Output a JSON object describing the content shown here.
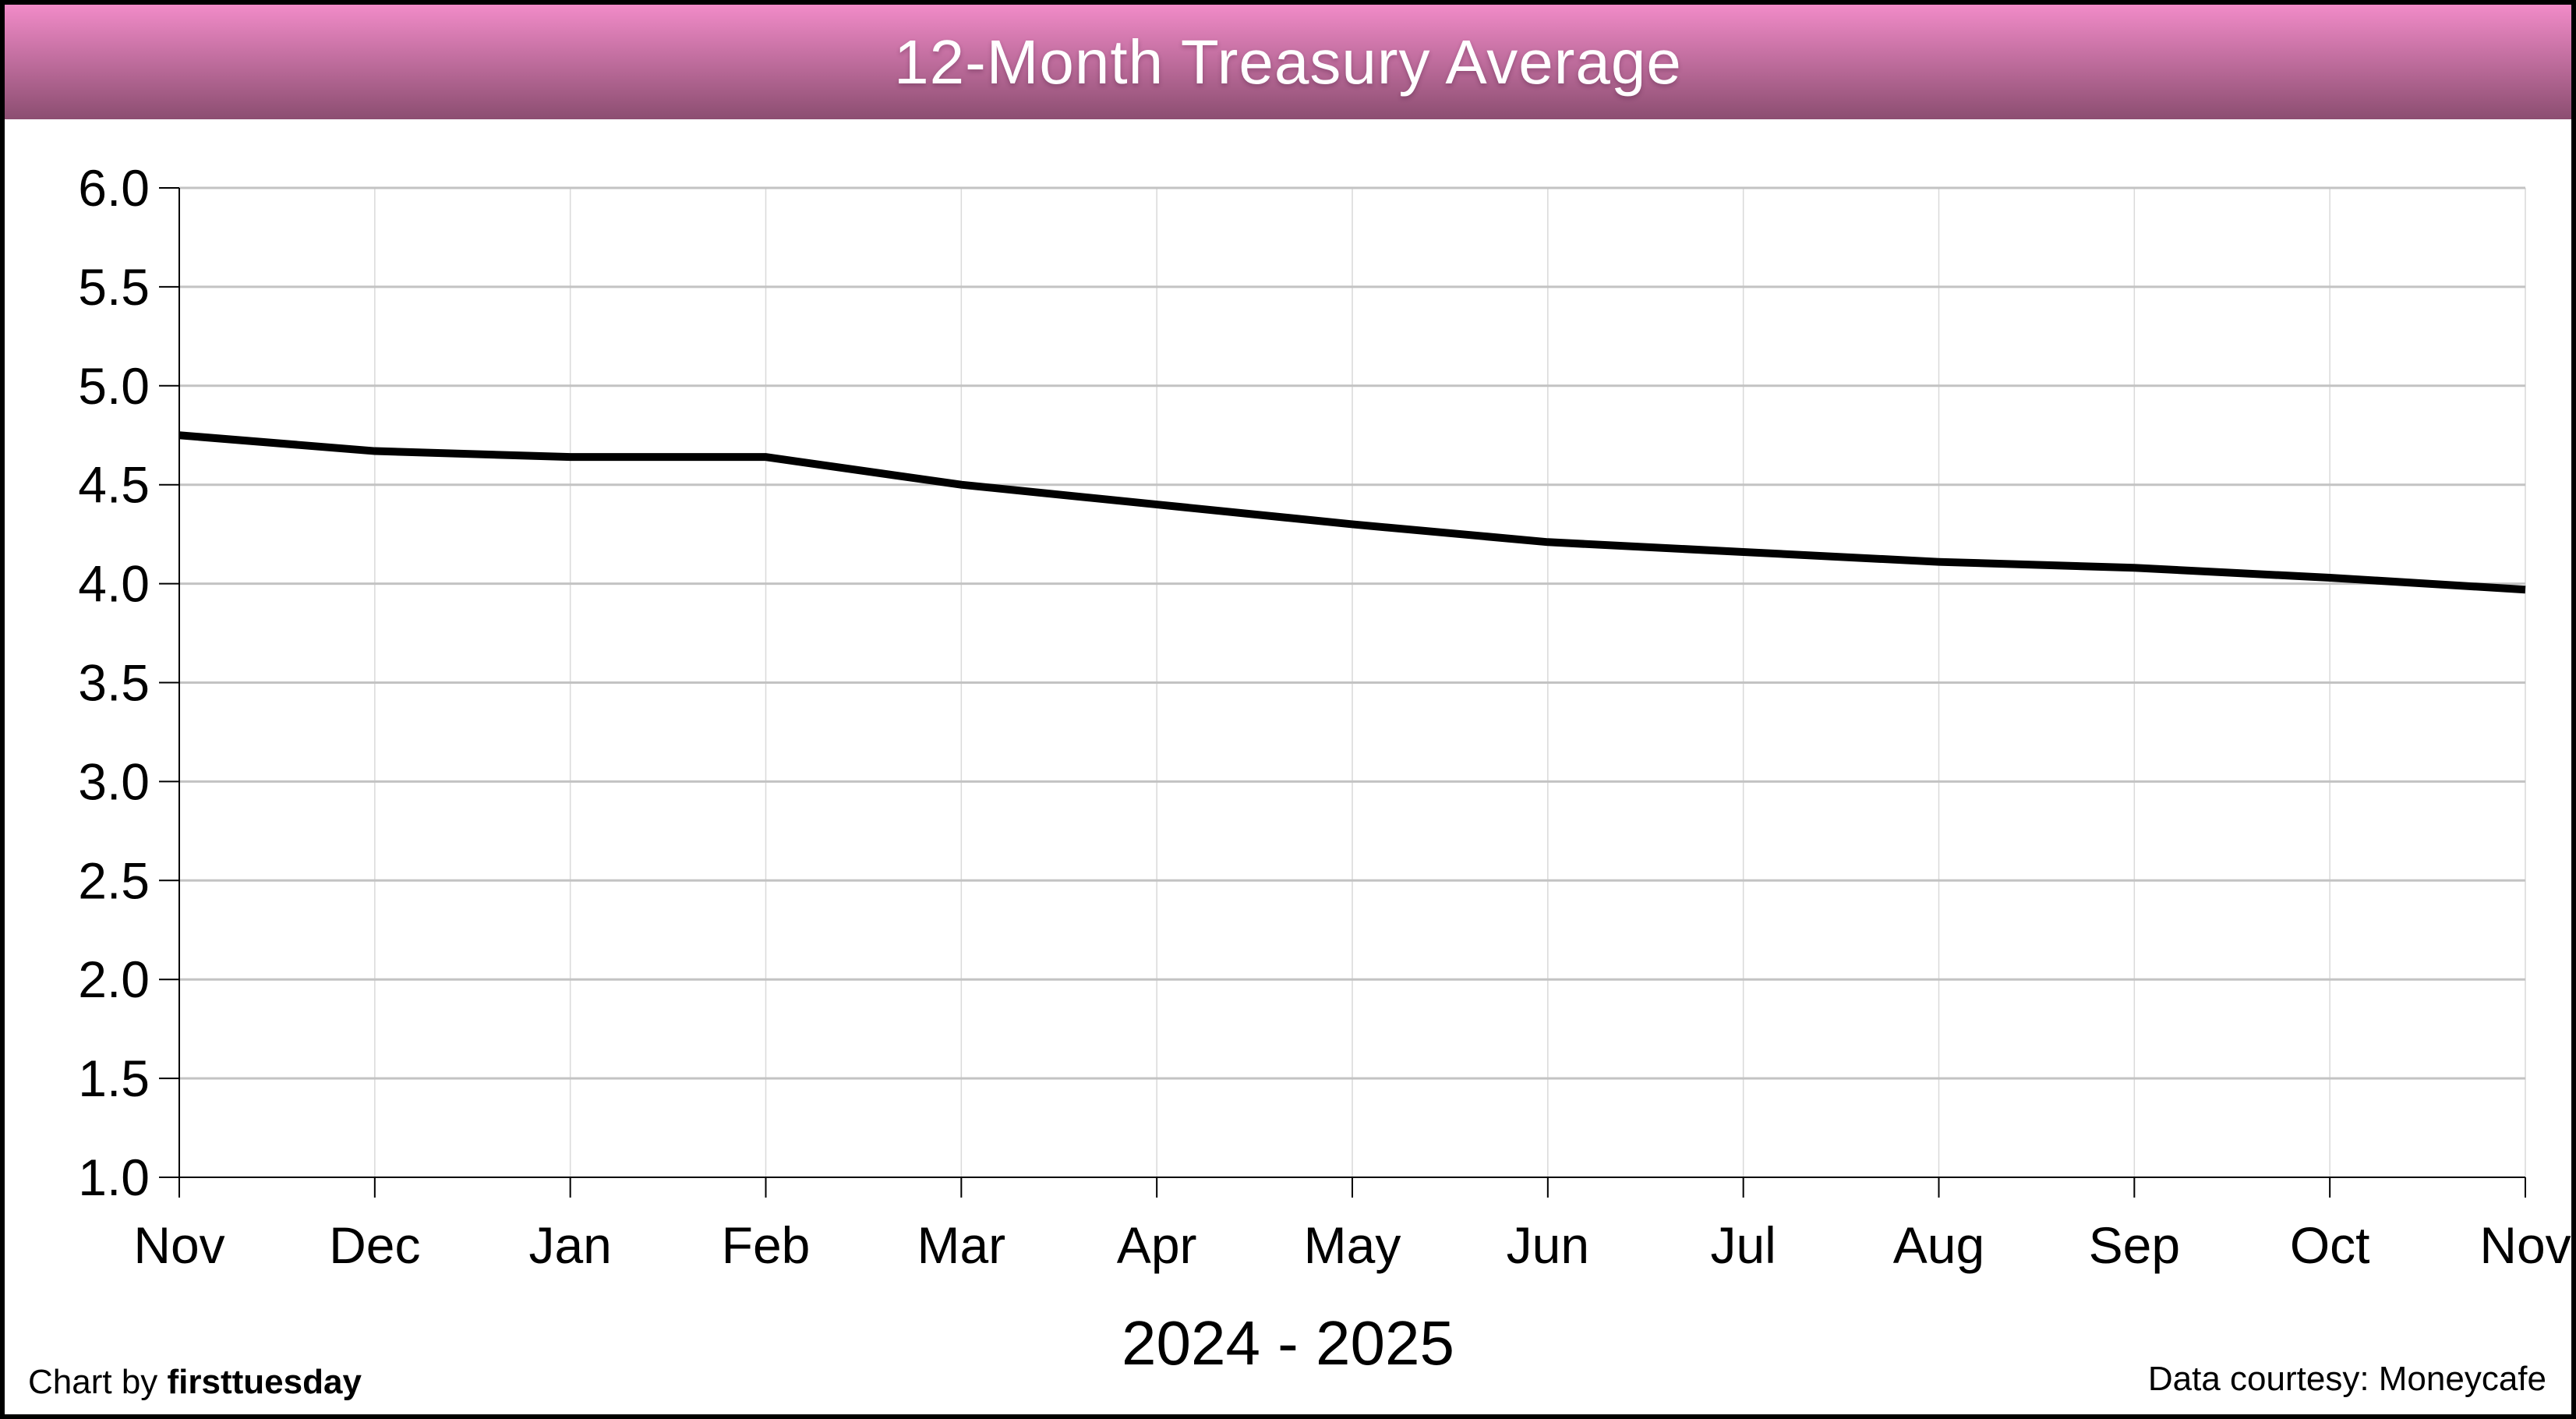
{
  "title_bar": {
    "title": "12-Month Treasury Average",
    "gradient_top": "#f18bc8",
    "gradient_bottom": "#8c4e71",
    "text_color": "#ffffff"
  },
  "footer": {
    "credit_prefix": "Chart by ",
    "credit_brand": "firsttuesday",
    "data_courtesy": "Data courtesy: Moneycafe"
  },
  "chart_data": {
    "type": "line",
    "title": "12-Month Treasury Average",
    "x": [
      "Nov",
      "Dec",
      "Jan",
      "Feb",
      "Mar",
      "Apr",
      "May",
      "Jun",
      "Jul",
      "Aug",
      "Sep",
      "Oct",
      "Nov"
    ],
    "series": [
      {
        "name": "12-Month Treasury Average",
        "values": [
          4.75,
          4.67,
          4.64,
          4.64,
          4.5,
          4.4,
          4.3,
          4.21,
          4.16,
          4.11,
          4.08,
          4.03,
          3.97
        ],
        "color": "#000000",
        "stroke_width": 10
      }
    ],
    "xlabel": "2024 - 2025",
    "ylim": [
      1.0,
      6.0
    ],
    "ytick_step": 0.5,
    "ytick_labels": [
      "6.0",
      "5.5",
      "5.0",
      "4.5",
      "4.0",
      "3.5",
      "3.0",
      "2.5",
      "2.0",
      "1.5",
      "1.0"
    ],
    "grid": true,
    "legend": "none",
    "colors": {
      "h_gridline": "#c3c3c3",
      "v_gridline": "#d9d9d9",
      "axis": "#000000",
      "label": "#000000"
    }
  }
}
